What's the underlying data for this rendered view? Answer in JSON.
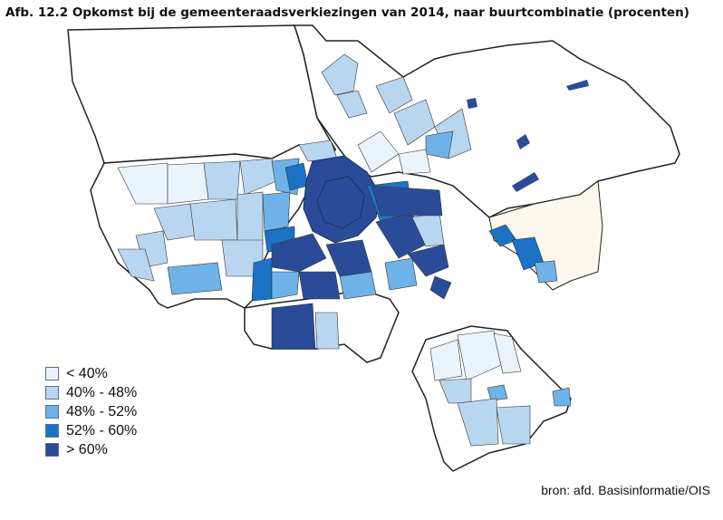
{
  "title": "Afb. 12.2  Opkomst bij de gemeenteraadsverkiezingen van 2014, naar buurtcombinatie (procenten)",
  "colors": {
    "c1": "#eaf3fb",
    "c2": "#b9d6f1",
    "c3": "#6fb2e7",
    "c4": "#1a73c6",
    "c5": "#2a4c98",
    "land": "#ffffff",
    "water_industry": "#fcf8ee",
    "border": "#222222"
  },
  "legend": [
    {
      "label": "< 40%",
      "color_key": "c1"
    },
    {
      "label": "40% - 48%",
      "color_key": "c2"
    },
    {
      "label": "48% - 52%",
      "color_key": "c3"
    },
    {
      "label": "52% - 60%",
      "color_key": "c4"
    },
    {
      "label": "> 60%",
      "color_key": "c5"
    }
  ],
  "source": "bron: afd. Basisinformatie/OIS"
}
